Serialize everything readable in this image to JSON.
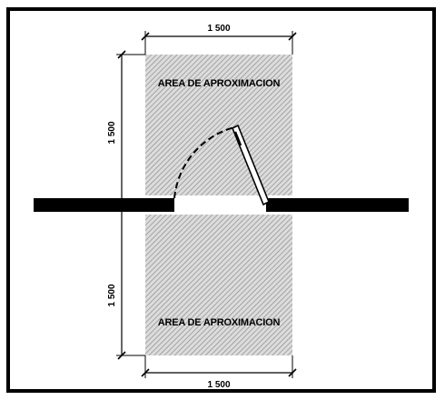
{
  "top_dimension": "1 500",
  "bottom_dimension": "1 500",
  "left_upper_dimension": "1 500",
  "left_lower_dimension": "1 500",
  "upper_area_label": "AREA DE APROXIMACION",
  "lower_area_label": "AREA DE APROXIMACION",
  "colors": {
    "line": "#000000",
    "hatch": "#9a9a9a",
    "area_fill": "#d6d6d6",
    "background": "#ffffff"
  }
}
